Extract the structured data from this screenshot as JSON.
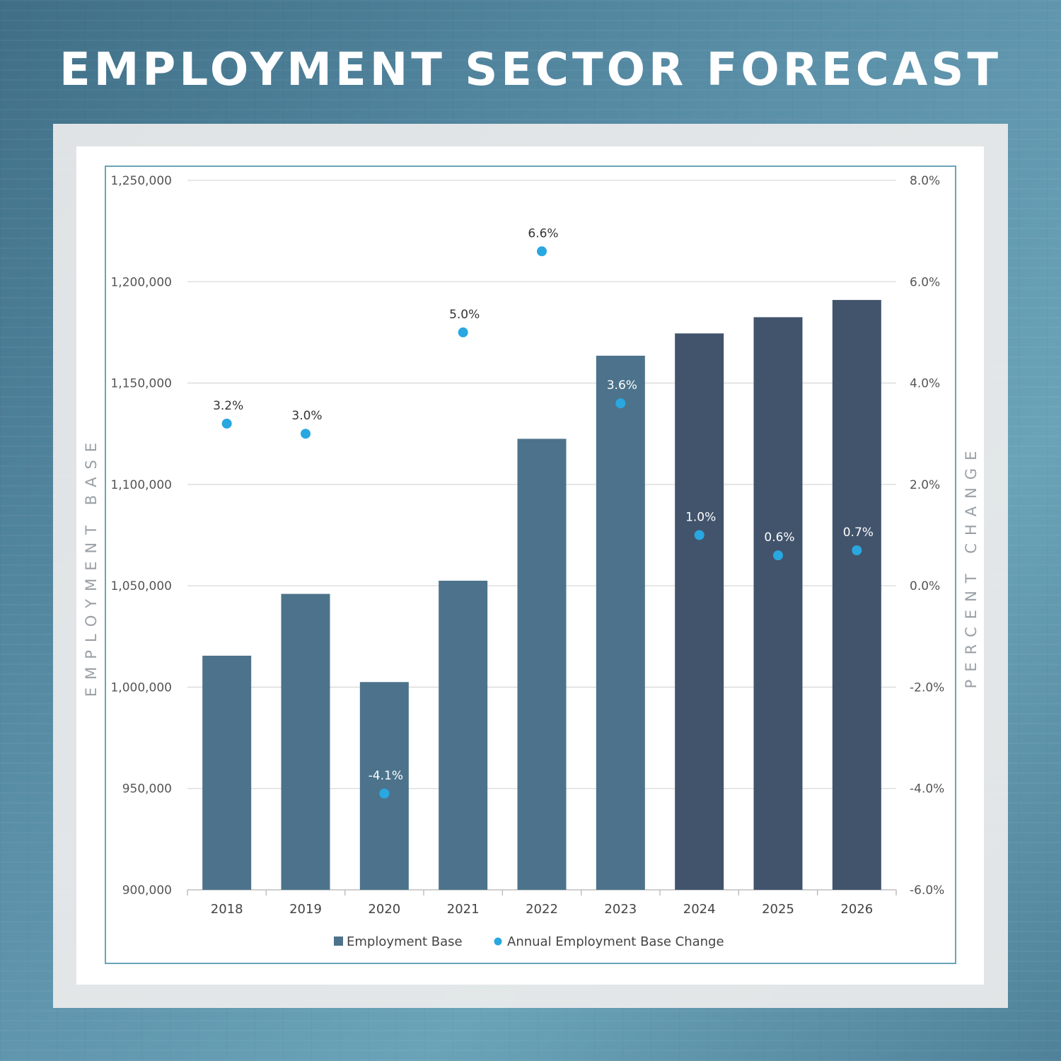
{
  "page": {
    "title": "EMPLOYMENT SECTOR FORECAST"
  },
  "colors": {
    "bar_actual": "#4c738b",
    "bar_forecast": "#42546c",
    "point": "#29a7e1",
    "grid": "#d9d9d9",
    "label_dark": "#333333",
    "label_light": "#ffffff"
  },
  "chart_data": {
    "type": "bar",
    "title": "EMPLOYMENT SECTOR FORECAST",
    "categories": [
      "2018",
      "2019",
      "2020",
      "2021",
      "2022",
      "2023",
      "2024",
      "2025",
      "2026"
    ],
    "series": [
      {
        "name": "Employment Base",
        "axis": "left",
        "type": "bar",
        "values": [
          1015500,
          1046000,
          1002500,
          1052500,
          1122500,
          1163500,
          1174500,
          1182500,
          1191000
        ],
        "forecast_from": "2024"
      },
      {
        "name": "Annual Employment Base Change",
        "axis": "right",
        "type": "scatter",
        "values": [
          3.2,
          3.0,
          -4.1,
          5.0,
          6.6,
          3.6,
          1.0,
          0.6,
          0.7
        ],
        "labels": [
          "3.2%",
          "3.0%",
          "-4.1%",
          "5.0%",
          "6.6%",
          "3.6%",
          "1.0%",
          "0.6%",
          "0.7%"
        ]
      }
    ],
    "ylabel_left": "EMPLOYMENT BASE",
    "ylabel_right": "PERCENT CHANGE",
    "ylim_left": [
      900000,
      1250000
    ],
    "ylim_right": [
      -6.0,
      8.0
    ],
    "yticks_left": [
      "900,000",
      "950,000",
      "1,000,000",
      "1,050,000",
      "1,100,000",
      "1,150,000",
      "1,200,000",
      "1,250,000"
    ],
    "yticks_right": [
      "-6.0%",
      "-4.0%",
      "-2.0%",
      "0.0%",
      "2.0%",
      "4.0%",
      "6.0%",
      "8.0%"
    ],
    "legend": [
      "Employment Base",
      "Annual Employment Base Change"
    ],
    "legend_position": "bottom",
    "grid": true
  }
}
